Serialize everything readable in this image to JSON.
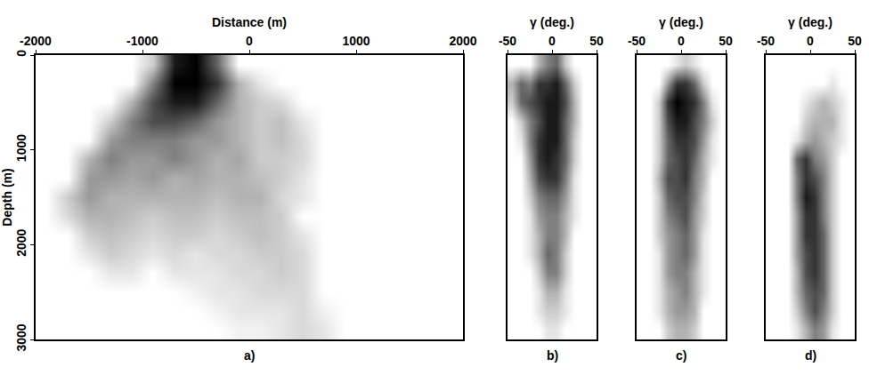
{
  "chart_data": [
    {
      "type": "heatmap",
      "label": "a)",
      "x_label": "Distance (m)",
      "y_label": "Depth (m)",
      "color": "#000000",
      "tick_labels": true,
      "xlim": [
        -2000,
        2000
      ],
      "xticks": [
        -2000,
        -1000,
        0,
        1000,
        2000
      ],
      "ylim": [
        3000,
        0
      ],
      "yticks": [
        0,
        1000,
        2000,
        3000
      ],
      "zlim": [
        0,
        1
      ],
      "x": [
        -1900,
        -1700,
        -1500,
        -1300,
        -1100,
        -900,
        -700,
        -500,
        -300,
        -100,
        100,
        300,
        500,
        700,
        900,
        1100,
        1300,
        1500,
        1700,
        1900
      ],
      "y": [
        100,
        300,
        500,
        700,
        900,
        1100,
        1300,
        1500,
        1700,
        1900,
        2100,
        2300,
        2500,
        2700,
        2900
      ],
      "z": [
        [
          0,
          0,
          0,
          0,
          0,
          0.2,
          0.9,
          1,
          0.6,
          0,
          0,
          0,
          0,
          0,
          0,
          0,
          0,
          0,
          0,
          0
        ],
        [
          0,
          0,
          0,
          0,
          0,
          0.5,
          1,
          1,
          0.8,
          0.3,
          0.1,
          0,
          0,
          0,
          0,
          0,
          0,
          0,
          0,
          0
        ],
        [
          0,
          0,
          0,
          0,
          0.3,
          0.7,
          0.9,
          0.9,
          0.6,
          0.3,
          0.2,
          0.15,
          0,
          0,
          0,
          0,
          0,
          0,
          0,
          0
        ],
        [
          0,
          0,
          0,
          0.2,
          0.5,
          0.7,
          0.7,
          0.6,
          0.4,
          0.3,
          0.2,
          0.25,
          0.1,
          0,
          0,
          0,
          0,
          0,
          0,
          0
        ],
        [
          0,
          0,
          0,
          0.4,
          0.5,
          0.5,
          0.5,
          0.4,
          0.4,
          0.3,
          0.2,
          0.25,
          0.15,
          0,
          0,
          0,
          0,
          0,
          0,
          0
        ],
        [
          0,
          0,
          0.3,
          0.5,
          0.4,
          0.4,
          0.5,
          0.4,
          0.3,
          0.35,
          0.2,
          0.2,
          0.15,
          0,
          0,
          0,
          0,
          0,
          0,
          0
        ],
        [
          0,
          0,
          0.4,
          0.4,
          0.35,
          0.4,
          0.3,
          0.35,
          0.3,
          0.3,
          0.25,
          0.2,
          0.1,
          0,
          0,
          0,
          0,
          0,
          0,
          0
        ],
        [
          0,
          0.2,
          0.4,
          0.3,
          0.3,
          0.3,
          0.3,
          0.3,
          0.25,
          0.3,
          0.3,
          0.15,
          0.1,
          0,
          0,
          0,
          0,
          0,
          0,
          0
        ],
        [
          0,
          0.15,
          0.3,
          0.3,
          0.25,
          0.2,
          0.25,
          0.25,
          0.2,
          0.25,
          0.25,
          0.2,
          0,
          0,
          0,
          0,
          0,
          0,
          0,
          0
        ],
        [
          0,
          0,
          0.2,
          0.25,
          0.2,
          0.15,
          0.2,
          0.2,
          0.15,
          0.2,
          0.25,
          0.2,
          0.1,
          0,
          0,
          0,
          0,
          0,
          0,
          0
        ],
        [
          0,
          0,
          0.1,
          0.2,
          0.15,
          0.1,
          0.15,
          0.1,
          0.15,
          0.15,
          0.2,
          0.2,
          0.15,
          0,
          0,
          0,
          0,
          0,
          0,
          0
        ],
        [
          0,
          0,
          0,
          0.1,
          0.1,
          0,
          0.1,
          0.1,
          0.1,
          0.15,
          0.15,
          0.2,
          0.15,
          0,
          0,
          0,
          0,
          0,
          0,
          0
        ],
        [
          0,
          0,
          0,
          0,
          0,
          0,
          0,
          0.05,
          0.1,
          0.1,
          0.15,
          0.15,
          0.15,
          0,
          0,
          0,
          0,
          0,
          0,
          0
        ],
        [
          0,
          0,
          0,
          0,
          0,
          0,
          0,
          0,
          0.05,
          0.1,
          0.1,
          0.1,
          0.15,
          0.05,
          0,
          0,
          0,
          0,
          0,
          0
        ],
        [
          0,
          0,
          0,
          0,
          0,
          0,
          0,
          0,
          0,
          0.05,
          0.05,
          0.1,
          0.15,
          0.1,
          0,
          0,
          0,
          0,
          0,
          0
        ]
      ]
    },
    {
      "type": "heatmap",
      "label": "b)",
      "x_label": "γ (deg.)",
      "color": "#000000",
      "tick_labels": "x",
      "xlim": [
        -50,
        50
      ],
      "xticks": [
        -50,
        0,
        50
      ],
      "ylim": [
        3000,
        0
      ],
      "zlim": [
        0,
        1
      ],
      "x": [
        -45,
        -35,
        -25,
        -15,
        -5,
        5,
        15,
        25,
        35,
        45
      ],
      "y": [
        100,
        300,
        500,
        700,
        900,
        1100,
        1300,
        1500,
        1700,
        1900,
        2100,
        2300,
        2500,
        2700,
        2900
      ],
      "z": [
        [
          0,
          0,
          0,
          0.3,
          0.5,
          0.6,
          0.2,
          0,
          0,
          0
        ],
        [
          0.3,
          0.6,
          0.5,
          0.8,
          0.8,
          0.9,
          0.6,
          0.2,
          0,
          0
        ],
        [
          0.2,
          0.6,
          0.7,
          0.8,
          0.9,
          0.9,
          0.7,
          0.3,
          0,
          0
        ],
        [
          0,
          0.2,
          0.5,
          0.7,
          0.9,
          0.9,
          0.6,
          0.3,
          0,
          0
        ],
        [
          0,
          0.1,
          0.5,
          0.8,
          0.9,
          0.9,
          0.6,
          0.2,
          0,
          0
        ],
        [
          0,
          0,
          0.4,
          0.8,
          0.9,
          0.8,
          0.6,
          0.2,
          0,
          0
        ],
        [
          0,
          0,
          0.3,
          0.7,
          0.8,
          0.8,
          0.5,
          0.1,
          0,
          0
        ],
        [
          0,
          0,
          0.2,
          0.5,
          0.6,
          0.6,
          0.4,
          0.1,
          0,
          0
        ],
        [
          0,
          0,
          0.1,
          0.4,
          0.5,
          0.5,
          0.3,
          0.1,
          0,
          0
        ],
        [
          0,
          0,
          0.1,
          0.3,
          0.5,
          0.5,
          0.3,
          0,
          0,
          0
        ],
        [
          0,
          0,
          0.1,
          0.3,
          0.6,
          0.5,
          0.2,
          0,
          0,
          0
        ],
        [
          0,
          0,
          0,
          0.2,
          0.5,
          0.5,
          0.2,
          0,
          0,
          0
        ],
        [
          0,
          0,
          0,
          0.1,
          0.3,
          0.3,
          0.1,
          0,
          0,
          0
        ],
        [
          0,
          0,
          0,
          0.1,
          0.2,
          0.2,
          0.1,
          0,
          0,
          0
        ],
        [
          0,
          0,
          0,
          0,
          0.1,
          0.1,
          0,
          0,
          0,
          0
        ]
      ]
    },
    {
      "type": "heatmap",
      "label": "c)",
      "x_label": "γ (deg.)",
      "color": "#000000",
      "tick_labels": "x",
      "xlim": [
        -50,
        50
      ],
      "xticks": [
        -50,
        0,
        50
      ],
      "ylim": [
        3000,
        0
      ],
      "zlim": [
        0,
        1
      ],
      "x": [
        -45,
        -35,
        -25,
        -15,
        -5,
        5,
        15,
        25,
        35,
        45
      ],
      "y": [
        100,
        300,
        500,
        700,
        900,
        1100,
        1300,
        1500,
        1700,
        1900,
        2100,
        2300,
        2500,
        2700,
        2900
      ],
      "z": [
        [
          0,
          0,
          0,
          0,
          0.1,
          0.2,
          0.1,
          0,
          0,
          0
        ],
        [
          0,
          0,
          0,
          0.4,
          0.8,
          0.8,
          0.6,
          0.2,
          0,
          0
        ],
        [
          0,
          0,
          0.2,
          0.8,
          1,
          0.9,
          0.8,
          0.5,
          0.1,
          0
        ],
        [
          0,
          0,
          0.2,
          0.7,
          0.9,
          0.9,
          0.7,
          0.5,
          0.2,
          0
        ],
        [
          0,
          0,
          0.2,
          0.6,
          0.8,
          0.8,
          0.7,
          0.4,
          0.1,
          0
        ],
        [
          0,
          0,
          0.2,
          0.6,
          0.7,
          0.8,
          0.6,
          0.3,
          0.1,
          0
        ],
        [
          0,
          0,
          0.3,
          0.7,
          0.7,
          0.8,
          0.5,
          0.3,
          0,
          0
        ],
        [
          0,
          0,
          0.2,
          0.6,
          0.7,
          0.7,
          0.5,
          0.2,
          0,
          0
        ],
        [
          0,
          0,
          0.2,
          0.5,
          0.6,
          0.7,
          0.4,
          0.2,
          0,
          0
        ],
        [
          0,
          0,
          0.2,
          0.4,
          0.5,
          0.6,
          0.4,
          0.1,
          0,
          0
        ],
        [
          0,
          0,
          0.1,
          0.4,
          0.5,
          0.6,
          0.4,
          0.1,
          0,
          0
        ],
        [
          0,
          0,
          0.1,
          0.4,
          0.5,
          0.5,
          0.3,
          0.1,
          0,
          0
        ],
        [
          0,
          0,
          0.1,
          0.3,
          0.4,
          0.5,
          0.3,
          0.1,
          0,
          0
        ],
        [
          0,
          0,
          0.1,
          0.3,
          0.4,
          0.4,
          0.3,
          0,
          0,
          0
        ],
        [
          0,
          0,
          0,
          0.2,
          0.3,
          0.3,
          0.2,
          0,
          0,
          0
        ]
      ]
    },
    {
      "type": "heatmap",
      "label": "d)",
      "x_label": "γ (deg.)",
      "color": "#000000",
      "tick_labels": "x",
      "xlim": [
        -50,
        50
      ],
      "xticks": [
        -50,
        0,
        50
      ],
      "ylim": [
        3000,
        0
      ],
      "zlim": [
        0,
        1
      ],
      "x": [
        -45,
        -35,
        -25,
        -15,
        -5,
        5,
        15,
        25,
        35,
        45
      ],
      "y": [
        100,
        300,
        500,
        700,
        900,
        1100,
        1300,
        1500,
        1700,
        1900,
        2100,
        2300,
        2500,
        2700,
        2900
      ],
      "z": [
        [
          0,
          0,
          0,
          0,
          0,
          0,
          0,
          0,
          0,
          0
        ],
        [
          0,
          0,
          0,
          0,
          0,
          0,
          0,
          0.1,
          0,
          0
        ],
        [
          0,
          0,
          0,
          0,
          0.1,
          0.2,
          0.3,
          0.2,
          0.1,
          0
        ],
        [
          0,
          0,
          0,
          0,
          0.2,
          0.3,
          0.3,
          0.3,
          0.1,
          0
        ],
        [
          0,
          0,
          0,
          0.1,
          0.3,
          0.4,
          0.3,
          0.2,
          0.1,
          0
        ],
        [
          0,
          0,
          0,
          0.6,
          0.8,
          0.5,
          0.4,
          0.2,
          0,
          0
        ],
        [
          0,
          0,
          0,
          0.5,
          0.8,
          0.7,
          0.5,
          0.2,
          0,
          0
        ],
        [
          0,
          0,
          0,
          0.5,
          0.9,
          0.8,
          0.5,
          0.2,
          0,
          0
        ],
        [
          0,
          0,
          0,
          0.4,
          0.8,
          0.8,
          0.5,
          0.2,
          0,
          0
        ],
        [
          0,
          0,
          0,
          0.4,
          0.8,
          0.8,
          0.6,
          0.2,
          0,
          0
        ],
        [
          0,
          0,
          0,
          0.4,
          0.7,
          0.8,
          0.6,
          0.2,
          0,
          0
        ],
        [
          0,
          0,
          0,
          0.3,
          0.7,
          0.8,
          0.6,
          0.2,
          0,
          0
        ],
        [
          0,
          0,
          0,
          0.3,
          0.6,
          0.7,
          0.6,
          0.2,
          0,
          0
        ],
        [
          0,
          0,
          0,
          0.2,
          0.5,
          0.7,
          0.5,
          0.2,
          0,
          0
        ],
        [
          0,
          0,
          0,
          0.1,
          0.3,
          0.5,
          0.4,
          0.1,
          0,
          0
        ]
      ]
    }
  ]
}
